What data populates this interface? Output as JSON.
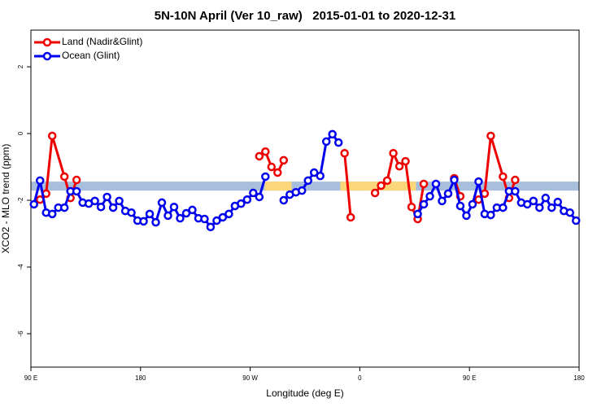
{
  "chart_data": {
    "type": "line",
    "title": "5N-10N April (Ver 10_raw)   2015-01-01 to 2020-12-31",
    "x_label": "Longitude (deg E)",
    "y_label": "XCO2 - MLO trend (ppm)",
    "xlim": [
      90,
      540
    ],
    "ylim": [
      -7,
      3.1
    ],
    "xticks": [
      {
        "value": 90,
        "label": "90 E"
      },
      180,
      {
        "value": 270,
        "label": "90 W"
      },
      {
        "value": 360,
        "label": "0"
      },
      {
        "value": 450,
        "label": "90 E"
      },
      {
        "value": 540,
        "label": "180"
      }
    ],
    "yticks": [
      2,
      0,
      -2,
      -4,
      -6
    ],
    "legend": "top-left",
    "bands": [
      {
        "xlim": [
          90,
          540
        ],
        "ylim": [
          -1.71,
          -1.44
        ],
        "color": "#a7bfdd"
      },
      {
        "xlim": [
          282,
          304
        ],
        "ylim": [
          -1.71,
          -1.44
        ],
        "color": "#fcd77a"
      },
      {
        "xlim": [
          344,
          406
        ],
        "ylim": [
          -1.71,
          -1.44
        ],
        "color": "#fcd77a"
      }
    ],
    "series": [
      {
        "name": "Land (Nadir&Glint)",
        "color": "#ee0000",
        "x": [
          97.5,
          102.5,
          107.5,
          117.5,
          122.5,
          127.5,
          null,
          277.5,
          282.5,
          287.5,
          292.5,
          297.5,
          null,
          347.5,
          352.5,
          null,
          372.5,
          377.5,
          382.5,
          387.5,
          392.5,
          397.5,
          402.5,
          407.5,
          412.5,
          null,
          437.5,
          442.5,
          null,
          457.5,
          462.5,
          467.5,
          477.5,
          482.5,
          487.5
        ],
        "values": [
          -1.98,
          -1.8,
          -0.07,
          -1.29,
          -1.93,
          -1.39,
          null,
          -0.68,
          -0.54,
          -1.0,
          -1.17,
          -0.8,
          null,
          -0.59,
          -2.51,
          null,
          -1.78,
          -1.56,
          -1.41,
          -0.59,
          -0.98,
          -0.83,
          -2.2,
          -2.56,
          -1.51,
          null,
          -1.34,
          -1.88,
          null,
          -1.98,
          -1.8,
          -0.07,
          -1.29,
          -1.93,
          -1.39
        ]
      },
      {
        "name": "Ocean (Glint)",
        "color": "#0000ee",
        "x": [
          92.5,
          97.5,
          102.5,
          107.5,
          112.5,
          117.5,
          122.5,
          127.5,
          132.5,
          137.5,
          142.5,
          147.5,
          152.5,
          157.5,
          162.5,
          167.5,
          172.5,
          177.5,
          182.5,
          187.5,
          192.5,
          197.5,
          202.5,
          207.5,
          212.5,
          217.5,
          222.5,
          227.5,
          232.5,
          237.5,
          242.5,
          247.5,
          252.5,
          257.5,
          262.5,
          267.5,
          272.5,
          277.5,
          282.5,
          null,
          297.5,
          302.5,
          307.5,
          312.5,
          317.5,
          322.5,
          327.5,
          332.5,
          337.5,
          342.5,
          null,
          407.5,
          412.5,
          417.5,
          422.5,
          427.5,
          432.5,
          437.5,
          442.5,
          447.5,
          452.5,
          457.5,
          462.5,
          467.5,
          472.5,
          477.5,
          482.5,
          487.5,
          492.5,
          497.5,
          502.5,
          507.5,
          512.5,
          517.5,
          522.5,
          527.5,
          532.5,
          537.5
        ],
        "values": [
          -2.12,
          -1.41,
          -2.37,
          -2.41,
          -2.22,
          -2.22,
          -1.73,
          -1.73,
          -2.07,
          -2.1,
          -2.02,
          -2.2,
          -1.9,
          -2.22,
          -2.02,
          -2.32,
          -2.37,
          -2.61,
          -2.63,
          -2.41,
          -2.66,
          -2.07,
          -2.46,
          -2.2,
          -2.54,
          -2.39,
          -2.29,
          -2.54,
          -2.56,
          -2.8,
          -2.61,
          -2.51,
          -2.41,
          -2.17,
          -2.1,
          -1.98,
          -1.78,
          -1.9,
          -1.29,
          null,
          -2.0,
          -1.83,
          -1.76,
          -1.71,
          -1.41,
          -1.17,
          -1.27,
          -0.24,
          -0.02,
          -0.27,
          null,
          -2.41,
          -2.12,
          -1.88,
          -1.51,
          -2.02,
          -1.8,
          -1.39,
          -2.17,
          -2.46,
          -2.12,
          -1.44,
          -2.41,
          -2.44,
          -2.22,
          -2.22,
          -1.73,
          -1.73,
          -2.07,
          -2.12,
          -2.02,
          -2.22,
          -1.93,
          -2.22,
          -2.05,
          -2.32,
          -2.37,
          -2.61
        ]
      }
    ]
  }
}
